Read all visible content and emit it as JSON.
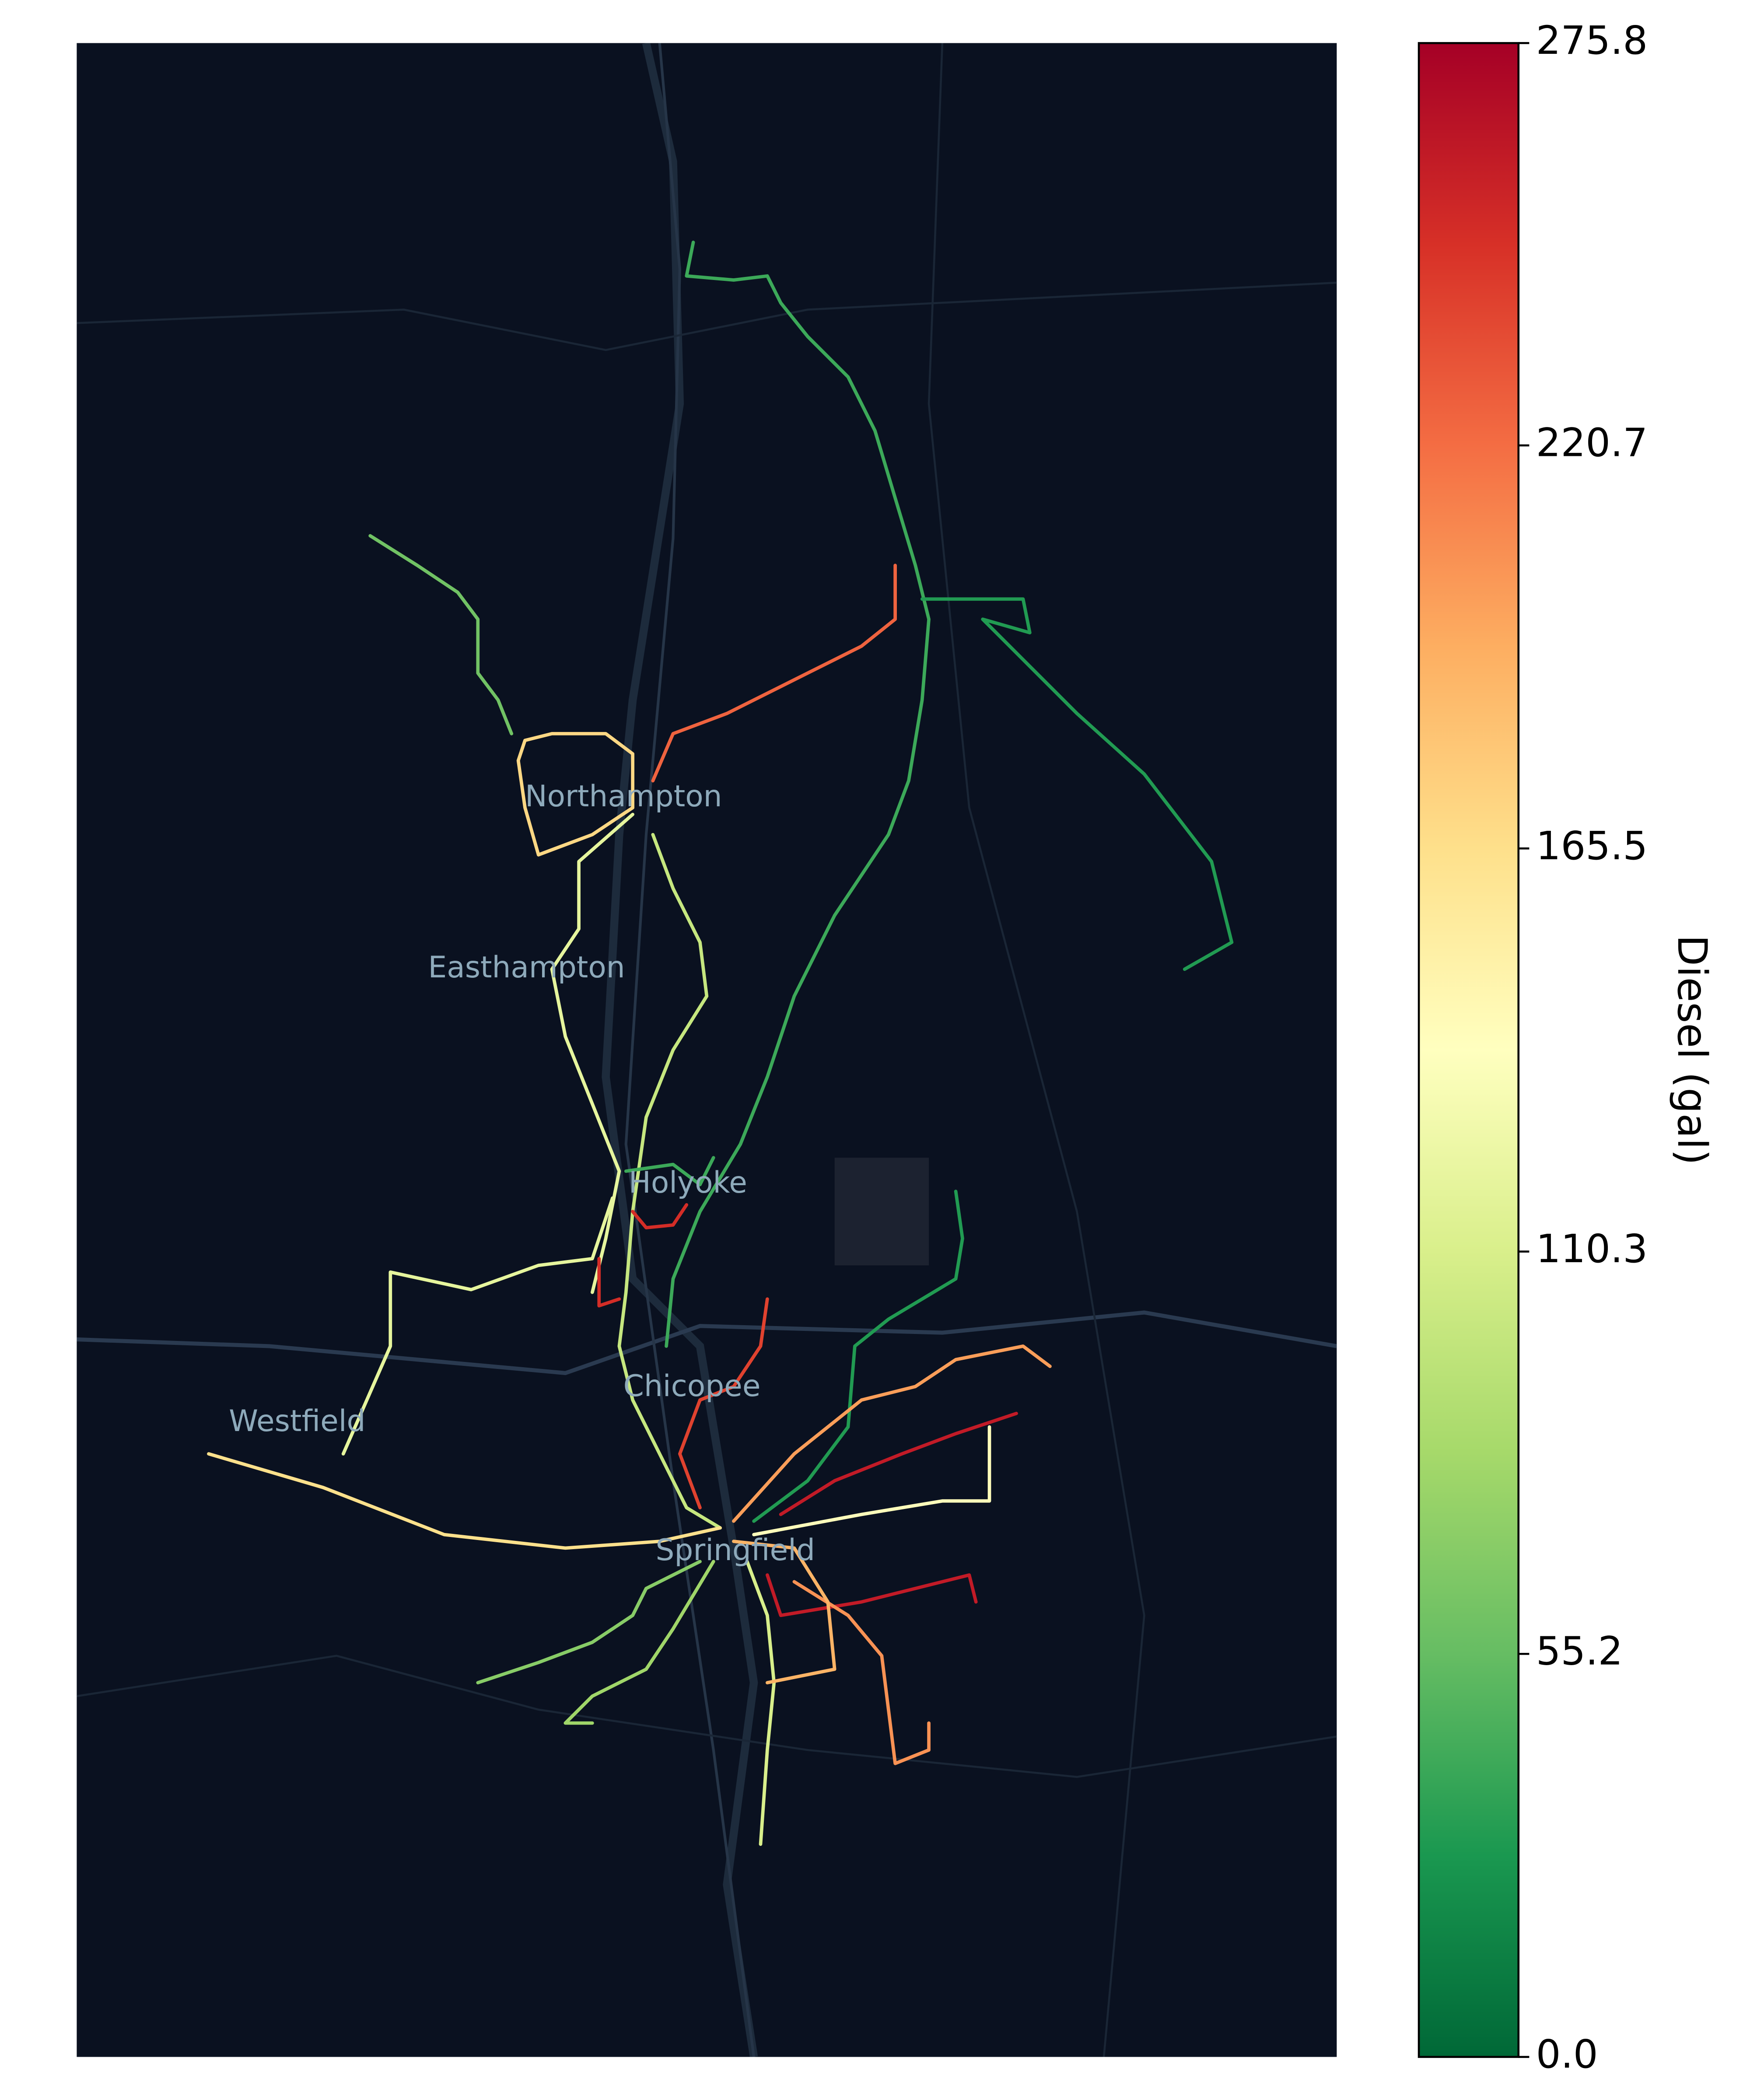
{
  "map": {
    "cities": [
      "Northampton",
      "Easthampton",
      "Holyoke",
      "Chicopee",
      "Westfield",
      "Springfield"
    ],
    "routes": [
      40,
      225,
      30,
      170,
      60,
      120,
      100,
      165,
      120,
      250,
      240,
      30,
      200,
      260,
      140,
      260,
      205,
      110,
      70,
      80,
      190,
      250,
      40
    ],
    "colorbar": {
      "label": "Diesel (gal)",
      "lim": [
        0,
        275.8
      ],
      "ticks": [
        {
          "value": 0,
          "label": "0.0"
        },
        {
          "value": 55.2,
          "label": "55.2"
        },
        {
          "value": 110.3,
          "label": "110.3"
        },
        {
          "value": 165.5,
          "label": "165.5"
        },
        {
          "value": 220.7,
          "label": "220.7"
        },
        {
          "value": 275.8,
          "label": "275.8"
        }
      ],
      "colors": [
        "#006837",
        "#1a9850",
        "#66bd63",
        "#a6d96a",
        "#d9ef8b",
        "#ffffbf",
        "#fee08b",
        "#fdae61",
        "#f46d43",
        "#d73027",
        "#a50026"
      ]
    }
  }
}
